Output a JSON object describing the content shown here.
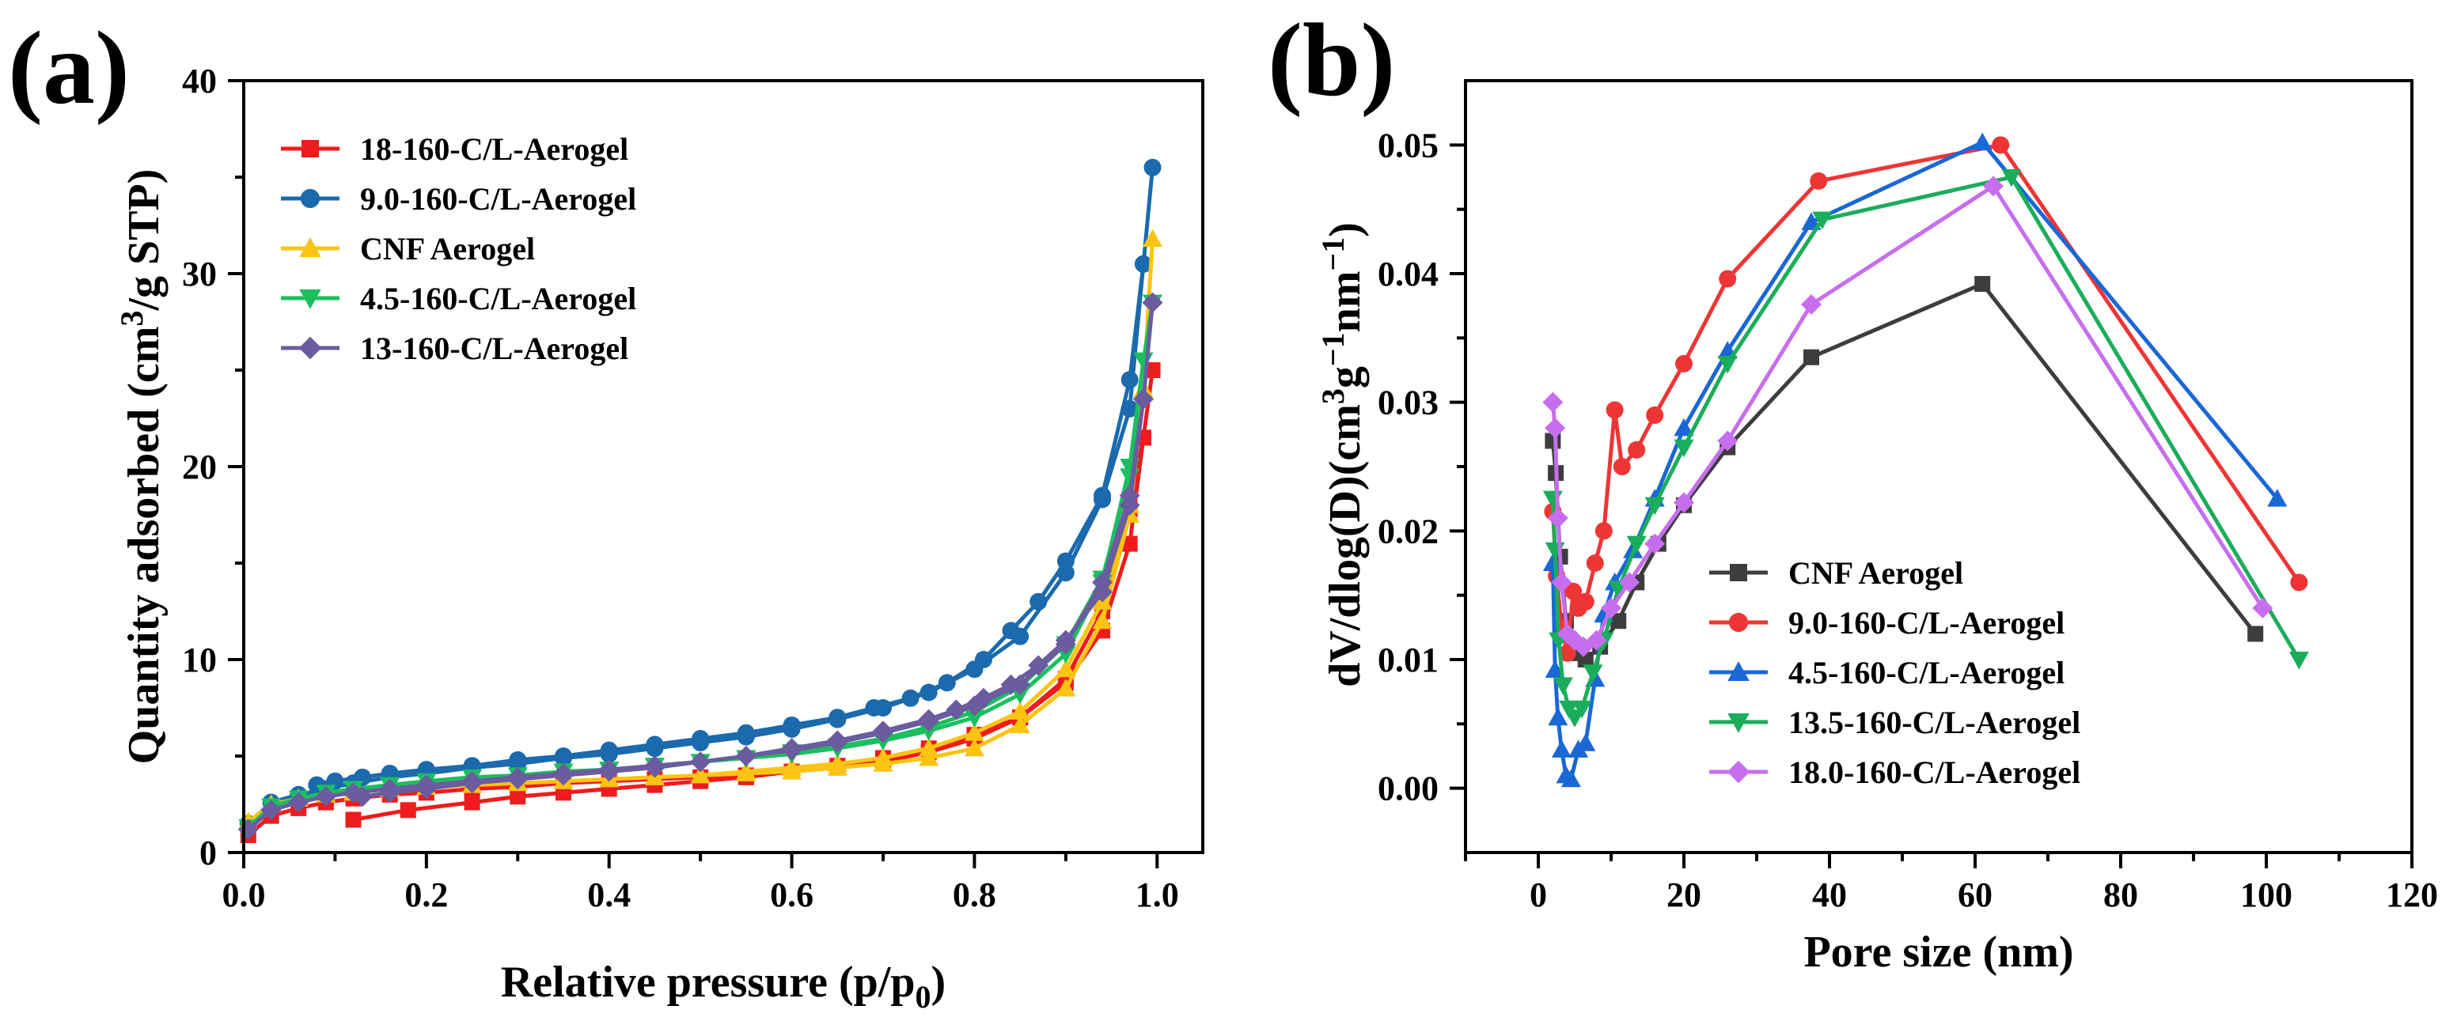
{
  "chart_data": [
    {
      "panel_label": "(a)",
      "type": "line",
      "xlabel": "Relative pressure (p/p",
      "xlabel_sub": "0",
      "xlabel_end": ")",
      "ylabel": "Quantity adsorbed (cm",
      "ylabel_sup": "3",
      "ylabel_end": "/g STP)",
      "xlim": [
        0.0,
        1.05
      ],
      "ylim": [
        0,
        40
      ],
      "xticks": [
        "0.0",
        "0.2",
        "0.4",
        "0.6",
        "0.8",
        "1.0"
      ],
      "yticks": [
        "0",
        "10",
        "20",
        "30",
        "40"
      ],
      "legend_position": "top-left",
      "series": [
        {
          "name": "18-160-C/L-Aerogel",
          "color": "#ee1c1c",
          "marker": "square",
          "x": [
            0.005,
            0.03,
            0.06,
            0.09,
            0.12,
            0.16,
            0.2,
            0.25,
            0.3,
            0.35,
            0.4,
            0.45,
            0.5,
            0.55,
            0.6,
            0.65,
            0.7,
            0.75,
            0.8,
            0.85,
            0.9,
            0.94,
            0.97,
            0.985,
            0.995,
            0.985,
            0.97,
            0.94,
            0.9,
            0.85,
            0.8,
            0.75,
            0.7,
            0.65,
            0.6,
            0.55,
            0.5,
            0.45,
            0.4,
            0.35,
            0.3,
            0.25,
            0.18,
            0.12
          ],
          "y": [
            0.9,
            1.9,
            2.3,
            2.6,
            2.8,
            3.0,
            3.1,
            3.3,
            3.4,
            3.6,
            3.7,
            3.8,
            3.9,
            4.0,
            4.2,
            4.4,
            4.7,
            5.2,
            5.9,
            7.0,
            9.0,
            12.5,
            17.8,
            21.5,
            25.0,
            21.5,
            16.0,
            11.5,
            8.8,
            7.0,
            6.1,
            5.4,
            4.9,
            4.5,
            4.2,
            3.9,
            3.7,
            3.5,
            3.3,
            3.1,
            2.9,
            2.6,
            2.2,
            1.7
          ]
        },
        {
          "name": "9.0-160-C/L-Aerogel",
          "color": "#1a6aad",
          "marker": "circle",
          "x": [
            0.005,
            0.03,
            0.06,
            0.09,
            0.12,
            0.16,
            0.2,
            0.25,
            0.3,
            0.35,
            0.4,
            0.45,
            0.5,
            0.55,
            0.6,
            0.65,
            0.7,
            0.75,
            0.8,
            0.85,
            0.9,
            0.94,
            0.97,
            0.985,
            0.995,
            0.985,
            0.97,
            0.94,
            0.9,
            0.87,
            0.84,
            0.81,
            0.77,
            0.73,
            0.69,
            0.65,
            0.6,
            0.55,
            0.5,
            0.45,
            0.4,
            0.35,
            0.3,
            0.25,
            0.2,
            0.16,
            0.13,
            0.1,
            0.08
          ],
          "y": [
            1.5,
            2.6,
            3.0,
            3.3,
            3.6,
            3.9,
            4.1,
            4.4,
            4.6,
            4.9,
            5.1,
            5.4,
            5.7,
            6.0,
            6.4,
            6.9,
            7.5,
            8.3,
            9.5,
            11.2,
            14.5,
            18.3,
            23.0,
            30.5,
            35.5,
            30.5,
            24.5,
            18.5,
            15.1,
            13.0,
            11.5,
            10.0,
            8.8,
            8.0,
            7.5,
            7.0,
            6.6,
            6.2,
            5.9,
            5.6,
            5.3,
            5.0,
            4.8,
            4.5,
            4.3,
            4.1,
            3.9,
            3.7,
            3.5
          ]
        },
        {
          "name": "CNF Aerogel",
          "color": "#fcc412",
          "marker": "triangle-up",
          "x": [
            0.005,
            0.03,
            0.06,
            0.09,
            0.12,
            0.16,
            0.2,
            0.25,
            0.3,
            0.35,
            0.4,
            0.45,
            0.5,
            0.55,
            0.6,
            0.65,
            0.7,
            0.75,
            0.8,
            0.85,
            0.9,
            0.94,
            0.97,
            0.985,
            0.995,
            0.985,
            0.97,
            0.94,
            0.9,
            0.85,
            0.8,
            0.75,
            0.7,
            0.65,
            0.6,
            0.55,
            0.5,
            0.45,
            0.4,
            0.35,
            0.3
          ],
          "y": [
            1.6,
            2.5,
            2.8,
            3.0,
            3.1,
            3.3,
            3.4,
            3.5,
            3.6,
            3.7,
            3.8,
            3.9,
            4.0,
            4.1,
            4.2,
            4.4,
            4.6,
            4.9,
            5.4,
            6.6,
            8.5,
            12.0,
            17.5,
            24.0,
            31.8,
            24.0,
            18.0,
            13.0,
            9.5,
            7.3,
            6.2,
            5.4,
            4.9,
            4.6,
            4.4,
            4.2,
            4.0,
            3.9,
            3.8,
            3.7,
            3.6
          ]
        },
        {
          "name": "4.5-160-C/L-Aerogel",
          "color": "#1bbf5f",
          "marker": "triangle-down",
          "x": [
            0.005,
            0.03,
            0.06,
            0.09,
            0.12,
            0.16,
            0.2,
            0.25,
            0.3,
            0.35,
            0.4,
            0.45,
            0.5,
            0.55,
            0.6,
            0.65,
            0.7,
            0.75,
            0.8,
            0.85,
            0.9,
            0.94,
            0.97,
            0.985,
            0.995,
            0.985,
            0.97,
            0.94,
            0.9,
            0.85,
            0.8,
            0.75,
            0.7,
            0.65,
            0.6,
            0.55,
            0.5,
            0.45,
            0.4
          ],
          "y": [
            1.3,
            2.4,
            2.8,
            3.1,
            3.3,
            3.5,
            3.7,
            3.9,
            4.0,
            4.2,
            4.3,
            4.5,
            4.7,
            4.9,
            5.1,
            5.4,
            5.8,
            6.3,
            7.0,
            8.2,
            10.3,
            14.0,
            20.0,
            25.5,
            28.5,
            25.5,
            19.5,
            14.2,
            10.8,
            8.6,
            7.3,
            6.5,
            5.9,
            5.5,
            5.2,
            4.9,
            4.7,
            4.5,
            4.3
          ]
        },
        {
          "name": "13-160-C/L-Aerogel",
          "color": "#6b5b9f",
          "marker": "diamond",
          "x": [
            0.005,
            0.03,
            0.06,
            0.09,
            0.12,
            0.16,
            0.2,
            0.25,
            0.3,
            0.35,
            0.4,
            0.45,
            0.5,
            0.55,
            0.6,
            0.65,
            0.7,
            0.75,
            0.8,
            0.85,
            0.9,
            0.94,
            0.97,
            0.985,
            0.995,
            0.985,
            0.97,
            0.94,
            0.9,
            0.87,
            0.84,
            0.81,
            0.78,
            0.75,
            0.7,
            0.65,
            0.6,
            0.55,
            0.5,
            0.45,
            0.4,
            0.35,
            0.3,
            0.25,
            0.2,
            0.16,
            0.13
          ],
          "y": [
            1.2,
            2.2,
            2.6,
            2.9,
            3.1,
            3.3,
            3.5,
            3.7,
            3.9,
            4.1,
            4.3,
            4.5,
            4.7,
            5.0,
            5.3,
            5.7,
            6.2,
            6.8,
            7.6,
            8.7,
            10.8,
            14.0,
            18.5,
            23.5,
            28.5,
            23.5,
            18.0,
            13.5,
            11.0,
            9.7,
            8.7,
            8.0,
            7.4,
            6.9,
            6.3,
            5.8,
            5.4,
            5.0,
            4.7,
            4.4,
            4.2,
            4.0,
            3.8,
            3.6,
            3.3,
            3.1,
            2.9
          ]
        }
      ]
    },
    {
      "panel_label": "(b)",
      "type": "line",
      "xlabel": "Pore size (nm)",
      "ylabel": "dV/dlog(D)(cm",
      "ylabel_sup1": "3",
      "ylabel_mid": "g",
      "ylabel_sup2": "−1",
      "ylabel_mid2": "nm",
      "ylabel_sup3": "−1",
      "ylabel_end": ")",
      "xlim": [
        -10,
        120
      ],
      "ylim": [
        -0.005,
        0.055
      ],
      "xticks": [
        "0",
        "20",
        "40",
        "60",
        "80",
        "100",
        "120"
      ],
      "yticks": [
        "0.00",
        "0.01",
        "0.02",
        "0.03",
        "0.04",
        "0.05"
      ],
      "legend_position": "bottom-center",
      "series": [
        {
          "name": "CNF Aerogel",
          "color": "#3d3d3d",
          "marker": "square",
          "x": [
            2.0,
            2.4,
            3.0,
            3.8,
            5.0,
            6.5,
            8.5,
            11.0,
            13.5,
            16.5,
            20.0,
            26.0,
            37.5,
            61.0,
            98.5
          ],
          "y": [
            0.027,
            0.0245,
            0.018,
            0.013,
            0.0105,
            0.01,
            0.011,
            0.013,
            0.016,
            0.019,
            0.022,
            0.0265,
            0.0335,
            0.0392,
            0.012
          ]
        },
        {
          "name": "9.0-160-C/L-Aerogel",
          "color": "#ee3535",
          "marker": "circle",
          "x": [
            2.0,
            2.5,
            3.2,
            4.0,
            4.8,
            5.5,
            6.5,
            7.8,
            9.0,
            10.5,
            11.5,
            13.5,
            16.0,
            20.0,
            26.0,
            38.5,
            63.5,
            104.5
          ],
          "y": [
            0.0215,
            0.0165,
            0.0125,
            0.0105,
            0.0153,
            0.014,
            0.0145,
            0.0175,
            0.02,
            0.0294,
            0.025,
            0.0263,
            0.029,
            0.033,
            0.0396,
            0.0472,
            0.05,
            0.016
          ]
        },
        {
          "name": "4.5-160-C/L-Aerogel",
          "color": "#1a67d6",
          "marker": "triangle-up",
          "x": [
            2.0,
            2.3,
            2.7,
            3.2,
            3.8,
            4.5,
            5.5,
            6.5,
            7.8,
            9.0,
            10.5,
            13.0,
            16.0,
            20.0,
            26.0,
            37.5,
            61.0,
            101.5
          ],
          "y": [
            0.0175,
            0.0092,
            0.0055,
            0.003,
            0.001,
            0.0007,
            0.003,
            0.0035,
            0.0085,
            0.0135,
            0.016,
            0.0185,
            0.0225,
            0.028,
            0.034,
            0.044,
            0.0502,
            0.0225
          ]
        },
        {
          "name": "13.5-160-C/L-Aerogel",
          "color": "#1aad5a",
          "marker": "triangle-down",
          "x": [
            2.0,
            2.3,
            2.8,
            3.4,
            4.2,
            5.0,
            6.0,
            7.5,
            9.0,
            11.0,
            13.5,
            16.0,
            20.0,
            26.0,
            39.0,
            65.0,
            104.5
          ],
          "y": [
            0.0225,
            0.0185,
            0.0115,
            0.008,
            0.0062,
            0.0055,
            0.0062,
            0.009,
            0.0115,
            0.0155,
            0.019,
            0.022,
            0.0265,
            0.033,
            0.0442,
            0.0475,
            0.01
          ]
        },
        {
          "name": "18.0-160-C/L-Aerogel",
          "color": "#c76eee",
          "marker": "diamond",
          "x": [
            2.0,
            2.3,
            2.7,
            3.2,
            4.0,
            5.0,
            6.2,
            8.0,
            10.0,
            12.5,
            16.0,
            20.0,
            26.0,
            37.5,
            62.5,
            99.5
          ],
          "y": [
            0.03,
            0.028,
            0.021,
            0.016,
            0.012,
            0.0115,
            0.011,
            0.0115,
            0.014,
            0.016,
            0.019,
            0.0222,
            0.027,
            0.0376,
            0.0468,
            0.014
          ]
        }
      ]
    }
  ]
}
